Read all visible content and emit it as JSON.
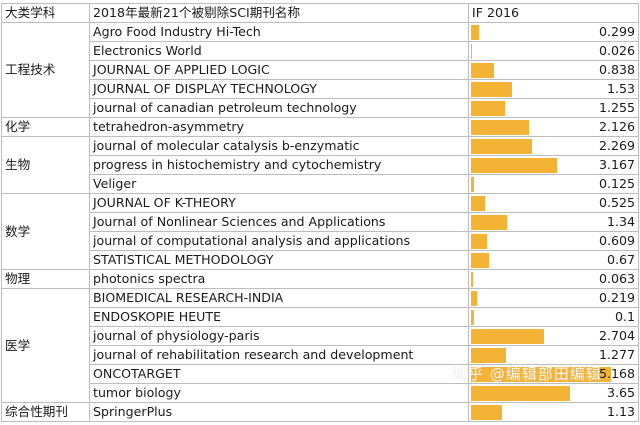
{
  "header": {
    "category": "大类学科",
    "title": "2018年最新21个被剔除SCI期刊名称",
    "if_col": "IF 2016"
  },
  "rows": [
    {
      "cat": "工程技术",
      "span": 5,
      "name": "Agro Food Industry Hi-Tech",
      "if": "0.299"
    },
    {
      "name": "Electronics World",
      "if": "0.026"
    },
    {
      "name": "JOURNAL OF APPLIED LOGIC",
      "if": "0.838"
    },
    {
      "name": "JOURNAL OF DISPLAY TECHNOLOGY",
      "if": "1.53"
    },
    {
      "name": "journal of canadian petroleum technology",
      "if": "1.255"
    },
    {
      "cat": "化学",
      "span": 1,
      "name": "tetrahedron-asymmetry",
      "if": "2.126"
    },
    {
      "cat": "生物",
      "span": 3,
      "name": "journal of molecular catalysis b-enzymatic",
      "if": "2.269"
    },
    {
      "name": "progress in histochemistry and cytochemistry",
      "if": "3.167"
    },
    {
      "name": "Veliger",
      "if": "0.125"
    },
    {
      "cat": "数学",
      "span": 4,
      "name": "JOURNAL OF K-THEORY",
      "if": "0.525"
    },
    {
      "name": "Journal of Nonlinear Sciences and Applications",
      "if": "1.34"
    },
    {
      "name": "journal of computational analysis and applications",
      "if": "0.609"
    },
    {
      "name": "STATISTICAL METHODOLOGY",
      "if": "0.67"
    },
    {
      "cat": "物理",
      "span": 1,
      "name": "photonics spectra",
      "if": "0.063"
    },
    {
      "cat": "医学",
      "span": 6,
      "name": "BIOMEDICAL RESEARCH-INDIA",
      "if": "0.219"
    },
    {
      "name": "ENDOSKOPIE HEUTE",
      "if": "0.1"
    },
    {
      "name": "journal of physiology-paris",
      "if": "2.704"
    },
    {
      "name": "journal of rehabilitation research and development",
      "if": "1.277"
    },
    {
      "name": "ONCOTARGET",
      "if": "5.168"
    },
    {
      "name": "tumor biology",
      "if": "3.65"
    },
    {
      "cat": "综合性期刊",
      "span": 1,
      "name": "SpringerPlus",
      "if": "1.13"
    }
  ],
  "bar_max": 5.168,
  "watermark": "知乎 @编辑部田编辑",
  "colors": {
    "bar": "#f5b335",
    "border": "#bdbdbd"
  }
}
